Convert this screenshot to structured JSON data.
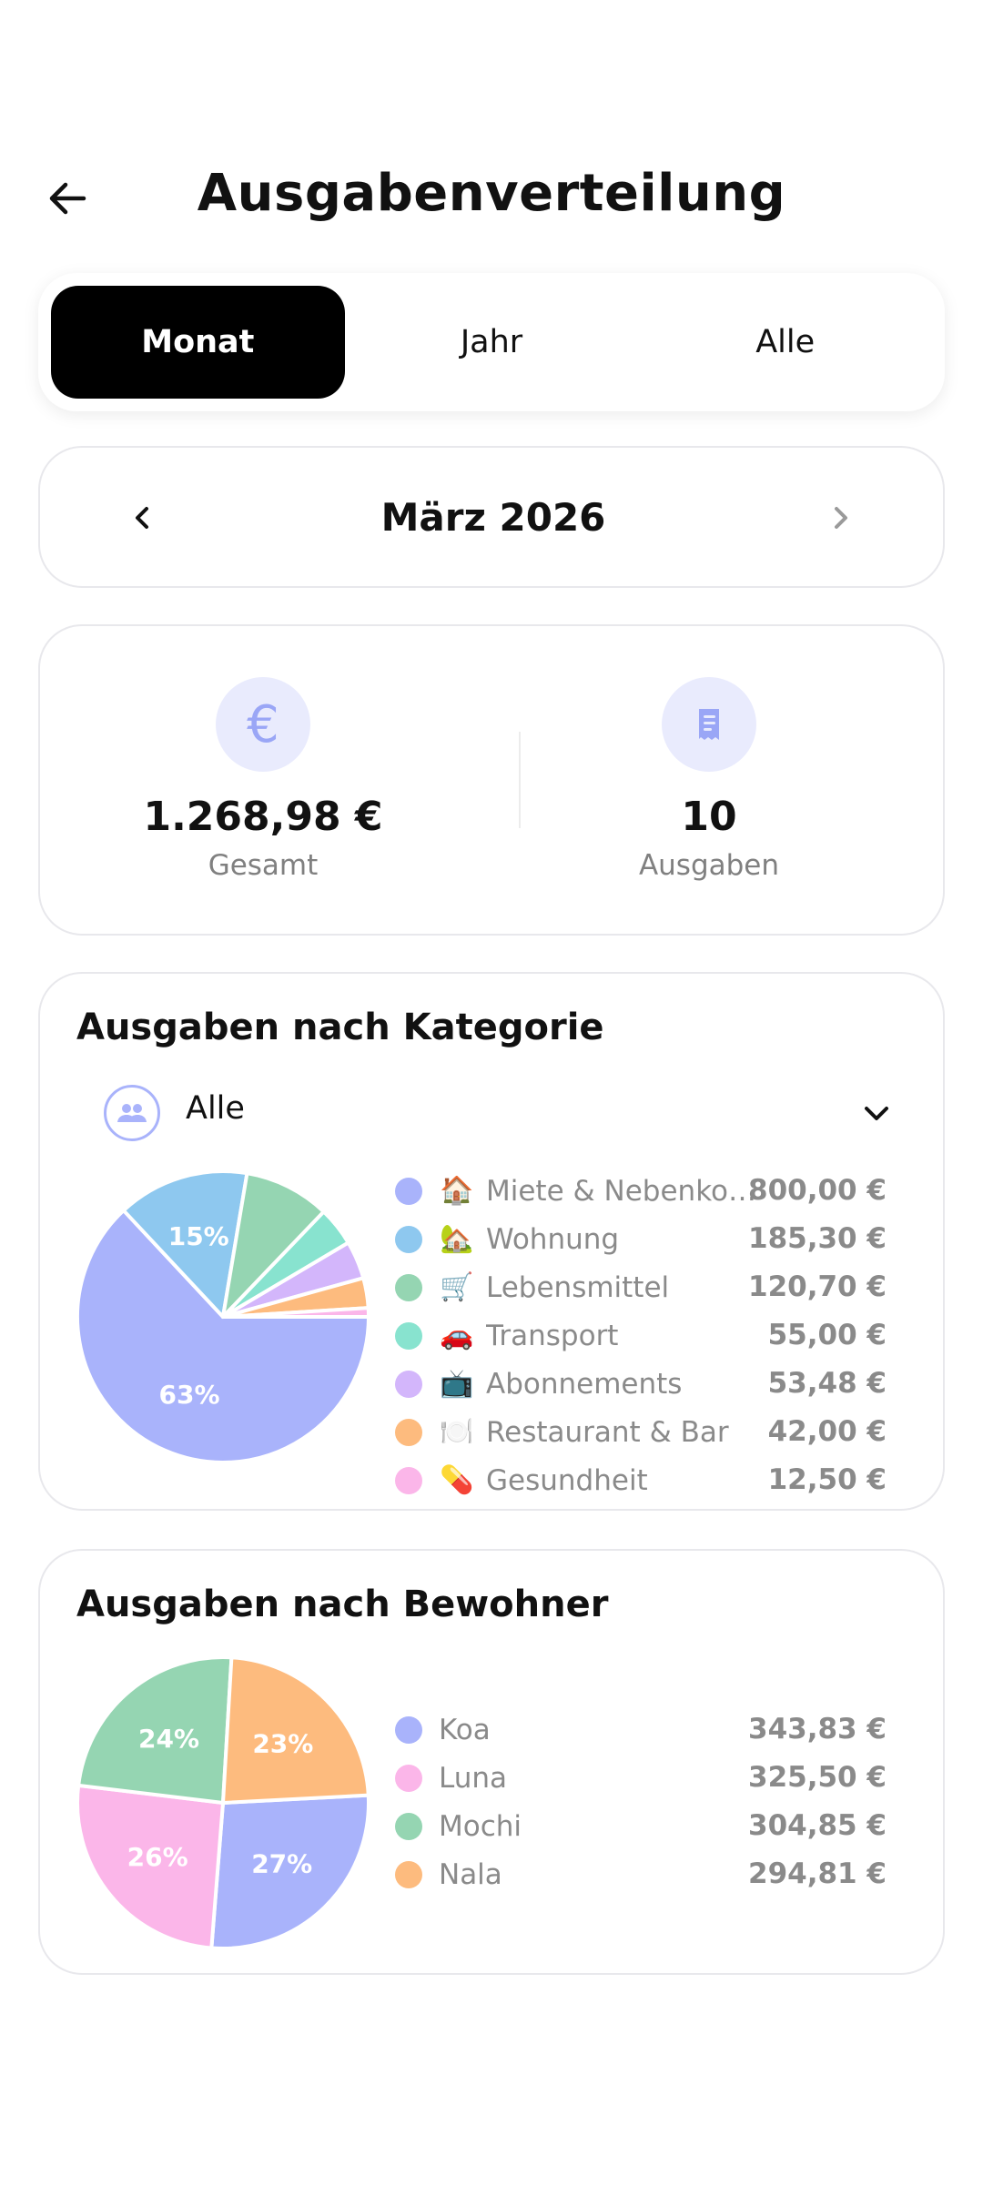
{
  "header": {
    "title": "Ausgabenverteilung"
  },
  "segments": [
    {
      "label": "Monat",
      "active": true
    },
    {
      "label": "Jahr",
      "active": false
    },
    {
      "label": "Alle",
      "active": false
    }
  ],
  "month_selector": {
    "label": "März 2026"
  },
  "summary": {
    "total_value": "1.268,98 €",
    "total_label": "Gesamt",
    "count_value": "10",
    "count_label": "Ausgaben"
  },
  "category_card": {
    "title": "Ausgaben nach Kategorie",
    "filter_label": "Alle",
    "items": [
      {
        "emoji": "🏠",
        "label": "Miete & Nebenkos…",
        "value": "800,00 €",
        "color": "#a9b3fb"
      },
      {
        "emoji": "🏡",
        "label": "Wohnung",
        "value": "185,30 €",
        "color": "#8ec8ef"
      },
      {
        "emoji": "🛒",
        "label": "Lebensmittel",
        "value": "120,70 €",
        "color": "#95d5b2"
      },
      {
        "emoji": "🚗",
        "label": "Transport",
        "value": "55,00 €",
        "color": "#88e3cf"
      },
      {
        "emoji": "📺",
        "label": "Abonnements",
        "value": "53,48 €",
        "color": "#d3b6fb"
      },
      {
        "emoji": "🍽️",
        "label": "Restaurant & Bar",
        "value": "42,00 €",
        "color": "#fdbb7e"
      },
      {
        "emoji": "💊",
        "label": "Gesundheit",
        "value": "12,50 €",
        "color": "#fbb6e9"
      }
    ]
  },
  "resident_card": {
    "title": "Ausgaben nach Bewohner",
    "items": [
      {
        "label": "Koa",
        "value": "343,83 €",
        "color": "#a9b3fb"
      },
      {
        "label": "Luna",
        "value": "325,50 €",
        "color": "#fbb6e9"
      },
      {
        "label": "Mochi",
        "value": "304,85 €",
        "color": "#95d5b2"
      },
      {
        "label": "Nala",
        "value": "294,81 €",
        "color": "#fdbb7e"
      }
    ]
  },
  "chart_data": [
    {
      "type": "pie",
      "categories": [
        "Miete & Nebenkos…",
        "Wohnung",
        "Lebensmittel",
        "Transport",
        "Abonnements",
        "Restaurant & Bar",
        "Gesundheit"
      ],
      "values": [
        800.0,
        185.3,
        120.7,
        55.0,
        53.48,
        42.0,
        12.5
      ],
      "data_labels": [
        "63%",
        "15%",
        "",
        "",
        "",
        "",
        ""
      ],
      "colors": [
        "#a9b3fb",
        "#8ec8ef",
        "#95d5b2",
        "#88e3cf",
        "#d3b6fb",
        "#fdbb7e",
        "#fbb6e9"
      ]
    },
    {
      "type": "pie",
      "categories": [
        "Koa",
        "Luna",
        "Mochi",
        "Nala"
      ],
      "values": [
        343.83,
        325.5,
        304.85,
        294.81
      ],
      "data_labels": [
        "27%",
        "26%",
        "24%",
        "23%"
      ],
      "colors": [
        "#a9b3fb",
        "#fbb6e9",
        "#95d5b2",
        "#fdbb7e"
      ]
    }
  ]
}
